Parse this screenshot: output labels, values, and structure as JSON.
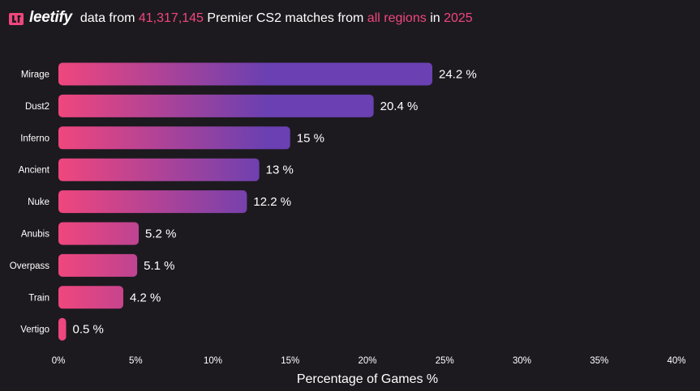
{
  "header": {
    "brand": "leetify",
    "text_1": "data from",
    "match_count": "41,317,145",
    "text_2": "Premier CS2 matches from",
    "regions": "all regions",
    "text_3": "in",
    "year": "2025"
  },
  "colors": {
    "background": "#1c1a1f",
    "highlight": "#f0467d",
    "bar_gradient_start": "#f0467d",
    "bar_gradient_end": "#6a40b2"
  },
  "chart_data": {
    "type": "bar",
    "orientation": "horizontal",
    "categories": [
      "Mirage",
      "Dust2",
      "Inferno",
      "Ancient",
      "Nuke",
      "Anubis",
      "Overpass",
      "Train",
      "Vertigo"
    ],
    "values": [
      24.2,
      20.4,
      15,
      13,
      12.2,
      5.2,
      5.1,
      4.2,
      0.5
    ],
    "value_labels": [
      "24.2 %",
      "20.4 %",
      "15 %",
      "13 %",
      "12.2 %",
      "5.2 %",
      "5.1 %",
      "4.2 %",
      "0.5 %"
    ],
    "x_ticks": [
      0,
      5,
      10,
      15,
      20,
      25,
      30,
      35,
      40
    ],
    "x_tick_labels": [
      "0%",
      "5%",
      "10%",
      "15%",
      "20%",
      "25%",
      "30%",
      "35%",
      "40%"
    ],
    "xlabel": "Percentage of Games %",
    "xlim": [
      0,
      40
    ],
    "grid": false
  }
}
